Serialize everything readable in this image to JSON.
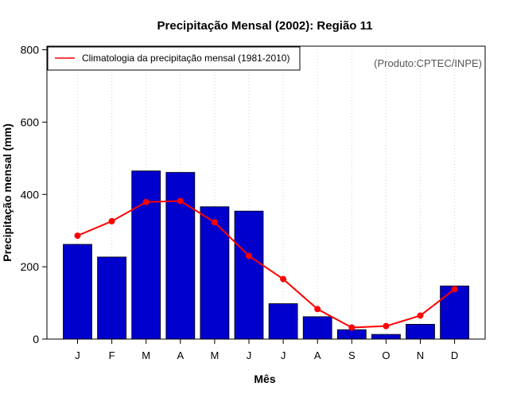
{
  "chart_data": {
    "type": "bar",
    "title": "Precipitação Mensal (2002): Região 11",
    "xlabel": "Mês",
    "ylabel": "Precipitação mensal (mm)",
    "ylim": [
      0,
      810
    ],
    "yticks": [
      0,
      200,
      400,
      600,
      800
    ],
    "categories": [
      "J",
      "F",
      "M",
      "A",
      "M",
      "J",
      "J",
      "A",
      "S",
      "O",
      "N",
      "D"
    ],
    "series": [
      {
        "name": "Precipitação mensal 2002",
        "type": "bar",
        "color": "#0000CD",
        "values": [
          262,
          227,
          465,
          461,
          366,
          354,
          98,
          62,
          26,
          13,
          41,
          147
        ]
      },
      {
        "name": "Climatologia da precipitação mensal (1981-2010)",
        "type": "line",
        "color": "#FF0000",
        "values": [
          286,
          326,
          379,
          382,
          323,
          230,
          166,
          83,
          32,
          36,
          65,
          138
        ]
      }
    ],
    "legend": {
      "position": "top-left",
      "entries": [
        "Climatologia da precipitação mensal (1981-2010)"
      ]
    },
    "annotation": "(Produto:CPTEC/INPE)",
    "grid": "vertical-dotted"
  }
}
